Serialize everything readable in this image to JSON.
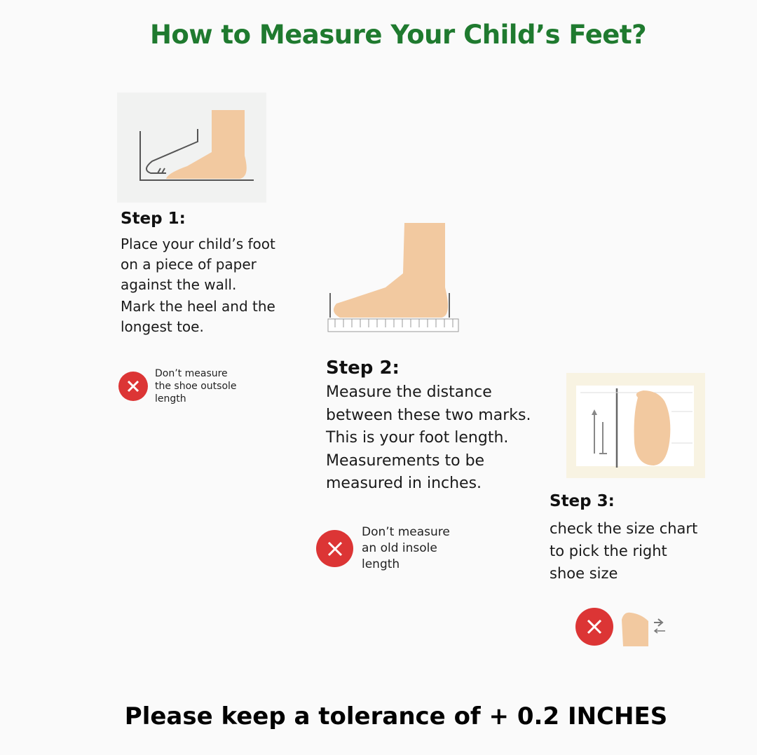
{
  "title": "How to Measure Your Child’s Feet?",
  "colors": {
    "title": "#1f7a2f",
    "warning": "#dc3535",
    "skin": "#f2c9a0"
  },
  "steps": [
    {
      "heading": "Step 1:",
      "lines": [
        "Place your child’s foot",
        "on a piece of paper",
        "against the wall.",
        "Mark the heel and the",
        "longest toe."
      ],
      "warning": [
        "Don’t measure",
        "the shoe outsole",
        "length"
      ],
      "illustration": "foot-against-wall"
    },
    {
      "heading": "Step 2:",
      "lines": [
        "Measure the distance",
        "between these two marks.",
        "This is your foot length.",
        "Measurements to be",
        "measured in inches."
      ],
      "warning": [
        "Don’t measure",
        "an old insole",
        "length"
      ],
      "illustration": "foot-on-ruler"
    },
    {
      "heading": "Step 3:",
      "lines": [
        "check the size chart",
        "to pick the right",
        "shoe size"
      ],
      "illustration": "foot-on-size-chart",
      "warning_icon": "foot-with-arrows"
    }
  ],
  "footer": "Please keep a tolerance of + 0.2 INCHES"
}
